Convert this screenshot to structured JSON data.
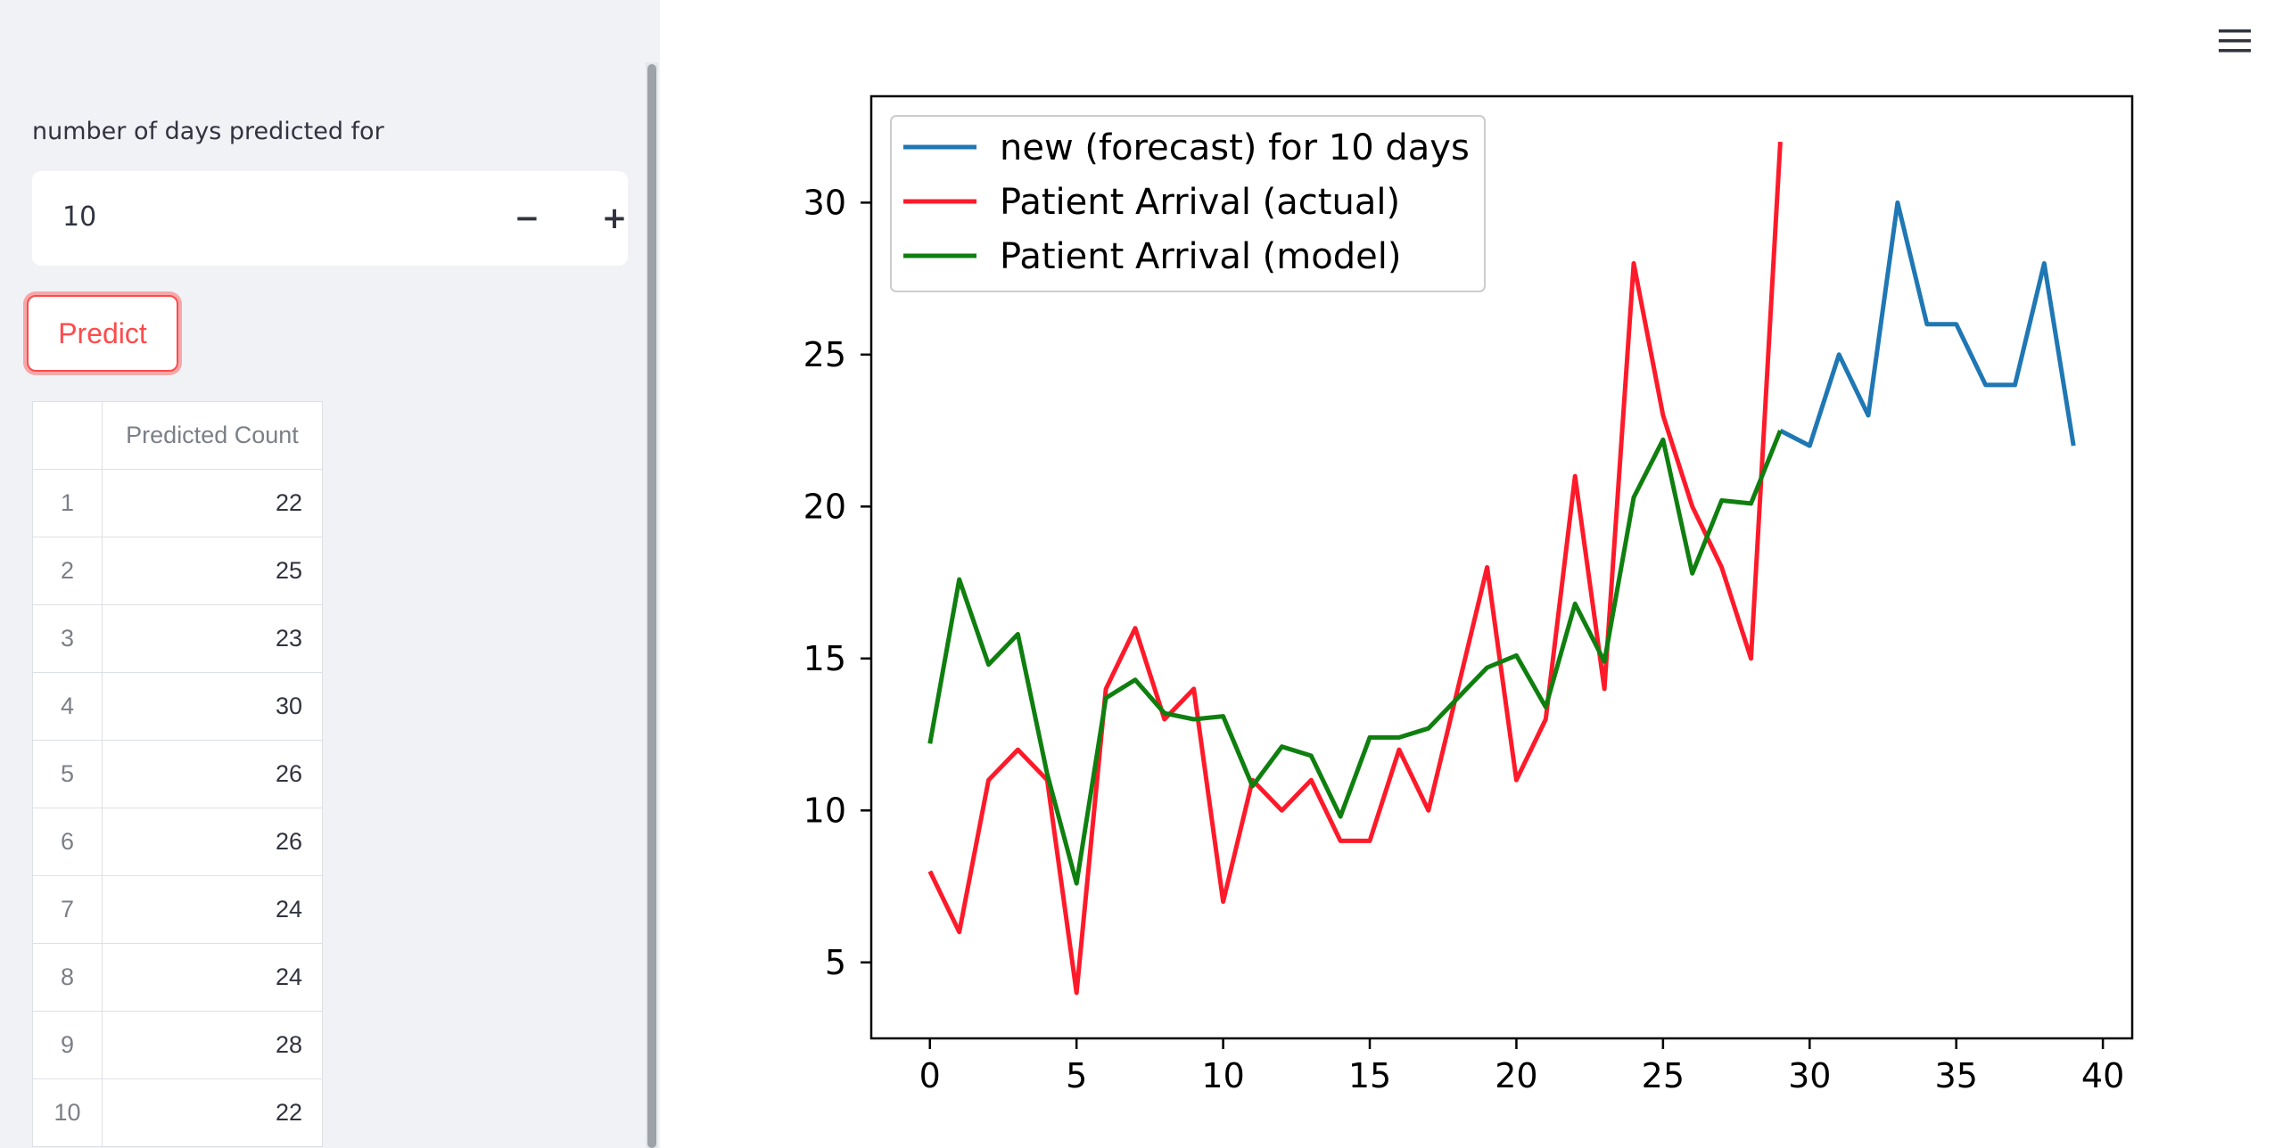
{
  "sidebar": {
    "input_label": "number of days predicted for",
    "input_value": "10",
    "minus_label": "−",
    "plus_label": "+",
    "predict_label": "Predict",
    "table": {
      "columns": [
        "",
        "Predicted Count"
      ],
      "rows": [
        {
          "index": "1",
          "value": "22"
        },
        {
          "index": "2",
          "value": "25"
        },
        {
          "index": "3",
          "value": "23"
        },
        {
          "index": "4",
          "value": "30"
        },
        {
          "index": "5",
          "value": "26"
        },
        {
          "index": "6",
          "value": "26"
        },
        {
          "index": "7",
          "value": "24"
        },
        {
          "index": "8",
          "value": "24"
        },
        {
          "index": "9",
          "value": "28"
        },
        {
          "index": "10",
          "value": "22"
        }
      ]
    }
  },
  "header": {
    "menu_icon": "hamburger-menu-icon"
  },
  "colors": {
    "accent": "#ff4b4b",
    "sidebar_bg": "#f0f2f6"
  },
  "chart_data": {
    "type": "line",
    "title": "",
    "xlabel": "",
    "ylabel": "",
    "xlim": [
      -2,
      41
    ],
    "ylim": [
      2.5,
      33.5
    ],
    "xticks": [
      0,
      5,
      10,
      15,
      20,
      25,
      30,
      35,
      40
    ],
    "yticks": [
      5,
      10,
      15,
      20,
      25,
      30
    ],
    "grid": false,
    "legend_position": "top-left",
    "series": [
      {
        "name": "new (forecast) for 10 days",
        "color": "#1f77b4",
        "x": [
          29,
          30,
          31,
          32,
          33,
          34,
          35,
          36,
          37,
          38,
          39
        ],
        "y": [
          22.5,
          22,
          25,
          23,
          30,
          26,
          26,
          24,
          24,
          28,
          22
        ]
      },
      {
        "name": "Patient Arrival (actual)",
        "color": "#ff1a2a",
        "x": [
          0,
          1,
          2,
          3,
          4,
          5,
          6,
          7,
          8,
          9,
          10,
          11,
          12,
          13,
          14,
          15,
          16,
          17,
          18,
          19,
          20,
          21,
          22,
          23,
          24,
          25,
          26,
          27,
          28,
          29
        ],
        "y": [
          8,
          6,
          11,
          12,
          11,
          4,
          14,
          16,
          13,
          14,
          7,
          11,
          10,
          11,
          9,
          9,
          12,
          10,
          14,
          18,
          11,
          13,
          21,
          14,
          28,
          23,
          20,
          18,
          15,
          32
        ]
      },
      {
        "name": "Patient Arrival (model)",
        "color": "#0f7f0f",
        "x": [
          0,
          1,
          2,
          3,
          4,
          5,
          6,
          7,
          8,
          9,
          10,
          11,
          12,
          13,
          14,
          15,
          16,
          17,
          18,
          19,
          20,
          21,
          22,
          23,
          24,
          25,
          26,
          27,
          28,
          29
        ],
        "y": [
          12.2,
          17.6,
          14.8,
          15.8,
          11.2,
          7.6,
          13.7,
          14.3,
          13.2,
          13,
          13.1,
          10.8,
          12.1,
          11.8,
          9.8,
          12.4,
          12.4,
          12.7,
          13.7,
          14.7,
          15.1,
          13.4,
          16.8,
          14.9,
          20.3,
          22.2,
          17.8,
          20.2,
          20.1,
          22.5
        ]
      }
    ]
  }
}
